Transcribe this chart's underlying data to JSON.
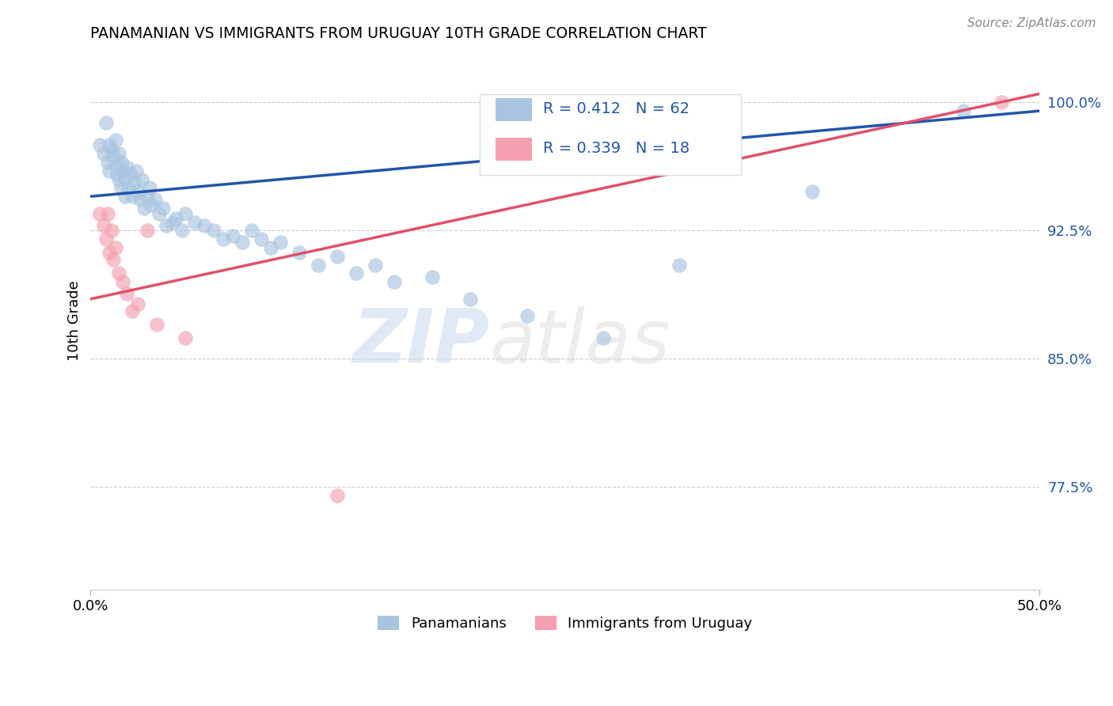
{
  "title": "PANAMANIAN VS IMMIGRANTS FROM URUGUAY 10TH GRADE CORRELATION CHART",
  "source": "Source: ZipAtlas.com",
  "ylabel": "10th Grade",
  "xlim": [
    0.0,
    0.5
  ],
  "ylim": [
    0.715,
    1.03
  ],
  "yticks": [
    0.775,
    0.85,
    0.925,
    1.0
  ],
  "ytick_labels": [
    "77.5%",
    "85.0%",
    "92.5%",
    "100.0%"
  ],
  "blue_R": 0.412,
  "blue_N": 62,
  "pink_R": 0.339,
  "pink_N": 18,
  "blue_color": "#a8c4e0",
  "pink_color": "#f4a0b0",
  "blue_line_color": "#2255aa",
  "pink_line_color": "#e0506a",
  "legend_label_blue": "Panamanians",
  "legend_label_pink": "Immigrants from Uruguay",
  "blue_x": [
    0.005,
    0.007,
    0.008,
    0.009,
    0.01,
    0.01,
    0.011,
    0.012,
    0.013,
    0.013,
    0.014,
    0.015,
    0.015,
    0.016,
    0.016,
    0.017,
    0.018,
    0.018,
    0.019,
    0.02,
    0.021,
    0.022,
    0.023,
    0.024,
    0.025,
    0.026,
    0.027,
    0.028,
    0.03,
    0.031,
    0.032,
    0.034,
    0.036,
    0.038,
    0.04,
    0.043,
    0.045,
    0.048,
    0.05,
    0.055,
    0.06,
    0.065,
    0.07,
    0.075,
    0.08,
    0.085,
    0.09,
    0.095,
    0.1,
    0.11,
    0.12,
    0.13,
    0.14,
    0.15,
    0.16,
    0.18,
    0.2,
    0.23,
    0.27,
    0.31,
    0.38,
    0.46
  ],
  "blue_y": [
    0.975,
    0.97,
    0.988,
    0.965,
    0.975,
    0.96,
    0.972,
    0.968,
    0.978,
    0.963,
    0.958,
    0.97,
    0.955,
    0.965,
    0.95,
    0.96,
    0.955,
    0.945,
    0.962,
    0.95,
    0.958,
    0.945,
    0.953,
    0.96,
    0.948,
    0.943,
    0.955,
    0.938,
    0.945,
    0.95,
    0.94,
    0.943,
    0.935,
    0.938,
    0.928,
    0.93,
    0.932,
    0.925,
    0.935,
    0.93,
    0.928,
    0.925,
    0.92,
    0.922,
    0.918,
    0.925,
    0.92,
    0.915,
    0.918,
    0.912,
    0.905,
    0.91,
    0.9,
    0.905,
    0.895,
    0.898,
    0.885,
    0.875,
    0.862,
    0.905,
    0.948,
    0.995
  ],
  "pink_x": [
    0.005,
    0.007,
    0.008,
    0.009,
    0.01,
    0.011,
    0.012,
    0.013,
    0.015,
    0.017,
    0.019,
    0.022,
    0.025,
    0.03,
    0.035,
    0.05,
    0.13,
    0.48
  ],
  "pink_y": [
    0.935,
    0.928,
    0.92,
    0.935,
    0.912,
    0.925,
    0.908,
    0.915,
    0.9,
    0.895,
    0.888,
    0.878,
    0.882,
    0.925,
    0.87,
    0.862,
    0.77,
    1.0
  ],
  "blue_trend_x": [
    0.0,
    0.5
  ],
  "blue_trend_y": [
    0.945,
    0.995
  ],
  "pink_trend_x": [
    0.0,
    0.5
  ],
  "pink_trend_y": [
    0.885,
    1.005
  ]
}
